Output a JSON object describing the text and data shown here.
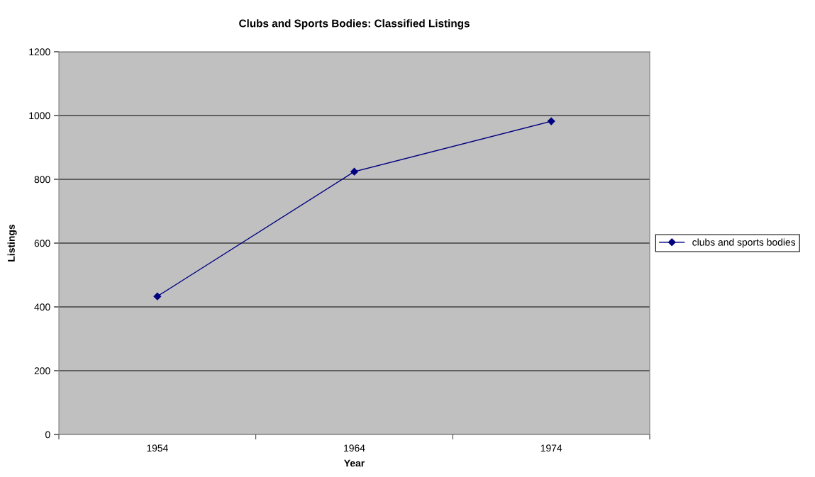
{
  "chart_data": {
    "type": "line",
    "title": "Clubs and Sports Bodies: Classified Listings",
    "xlabel": "Year",
    "ylabel": "Listings",
    "categories": [
      "1954",
      "1964",
      "1974"
    ],
    "series": [
      {
        "name": "clubs and sports bodies",
        "color": "#000080",
        "values": [
          433,
          824,
          982
        ]
      }
    ],
    "ylim": [
      0,
      1200
    ],
    "yticks": [
      0,
      200,
      400,
      600,
      800,
      1000,
      1200
    ],
    "grid": "y",
    "legend": "right",
    "marker": "diamond",
    "line_style": "solid"
  }
}
